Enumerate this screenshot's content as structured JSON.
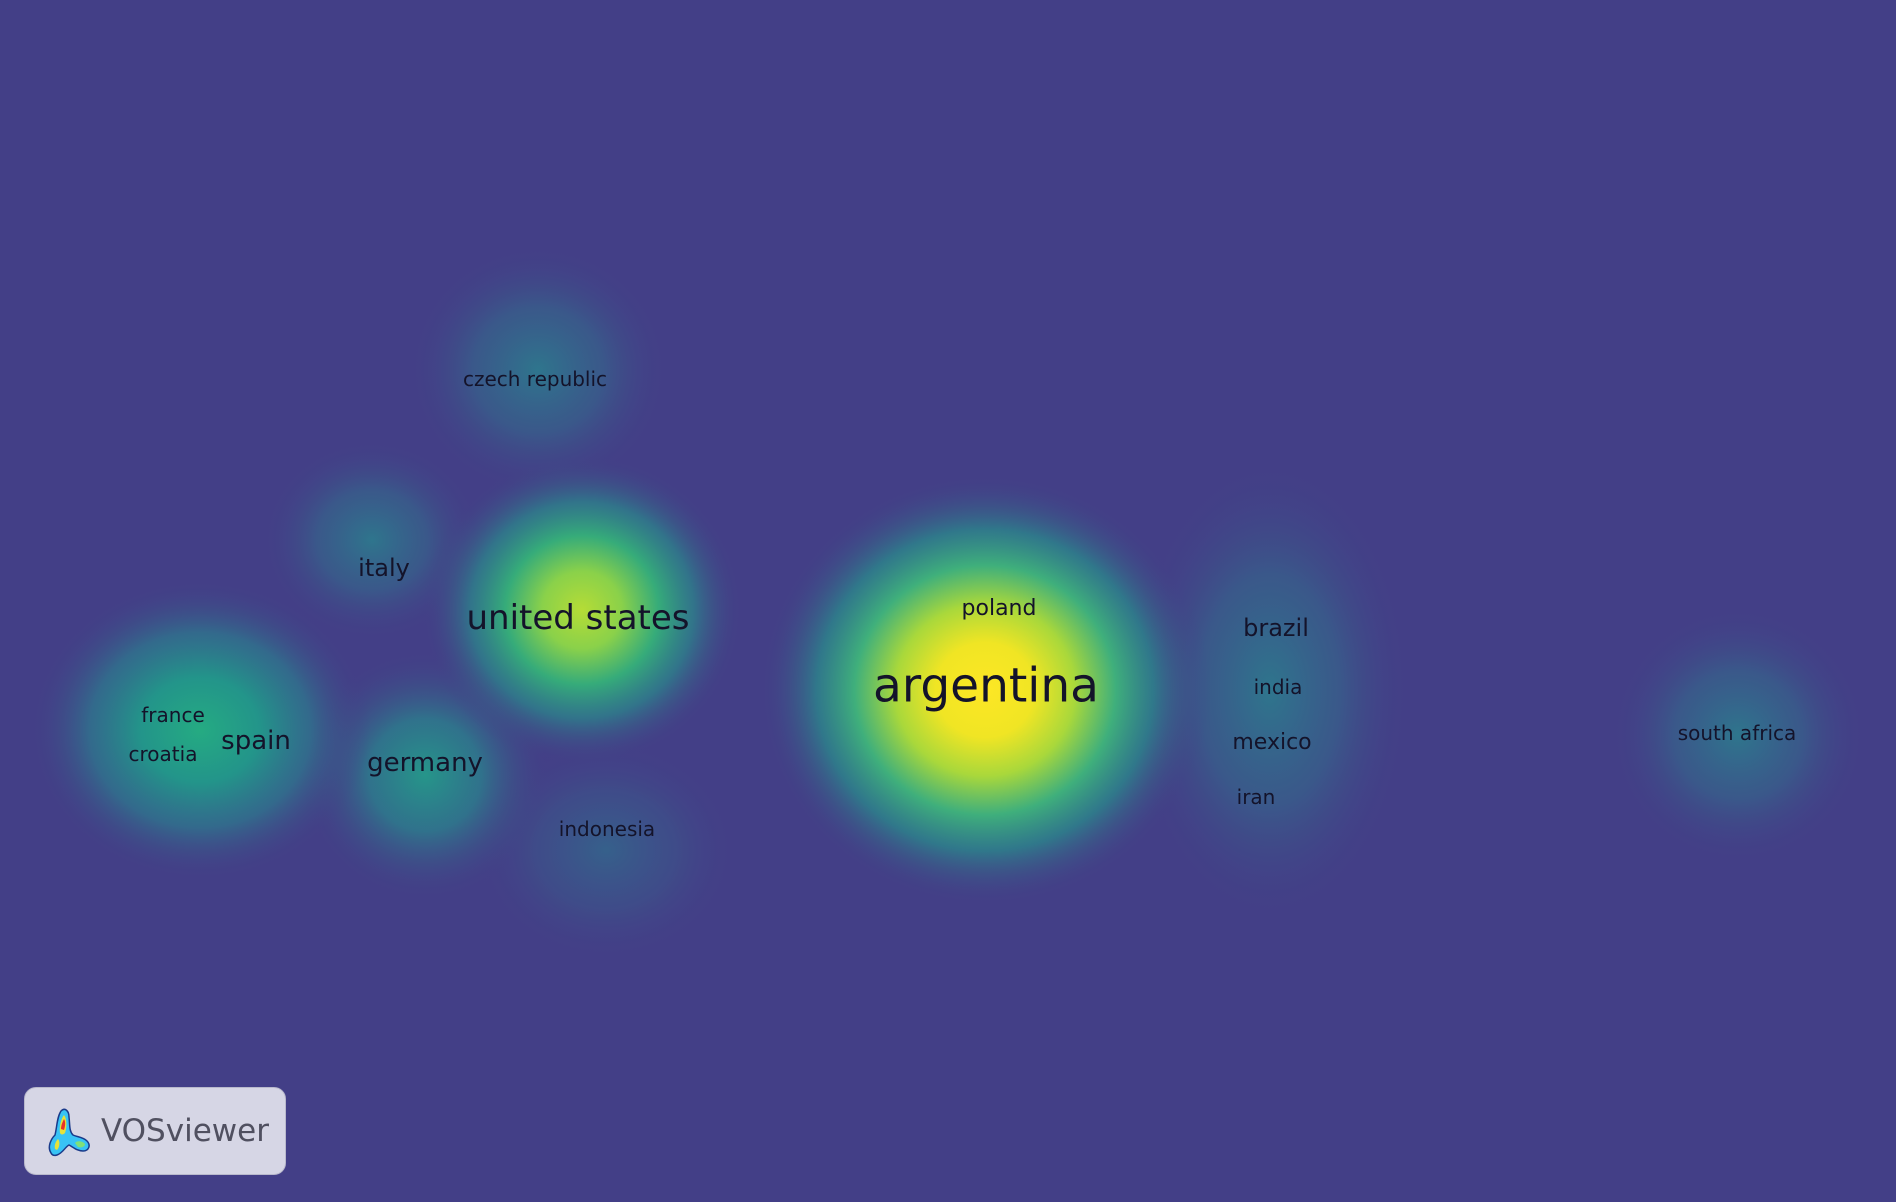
{
  "map": {
    "view": "density visualization",
    "background_color": "#433f87",
    "colormap": [
      "#433f87",
      "#2a788e",
      "#22a884",
      "#7ad151",
      "#fde725"
    ],
    "terms": [
      {
        "label": "argentina",
        "weight": 1.0
      },
      {
        "label": "united states",
        "weight": 0.62
      },
      {
        "label": "spain",
        "weight": 0.42
      },
      {
        "label": "germany",
        "weight": 0.38
      },
      {
        "label": "brazil",
        "weight": 0.34
      },
      {
        "label": "czech republic",
        "weight": 0.28
      },
      {
        "label": "italy",
        "weight": 0.26
      },
      {
        "label": "south africa",
        "weight": 0.24
      },
      {
        "label": "poland",
        "weight": 0.22
      },
      {
        "label": "mexico",
        "weight": 0.22
      },
      {
        "label": "indonesia",
        "weight": 0.2
      },
      {
        "label": "france",
        "weight": 0.18
      },
      {
        "label": "croatia",
        "weight": 0.18
      },
      {
        "label": "india",
        "weight": 0.18
      },
      {
        "label": "iran",
        "weight": 0.18
      }
    ]
  },
  "logo": {
    "text": "VOSviewer",
    "icon": "vosviewer-logo-icon"
  }
}
